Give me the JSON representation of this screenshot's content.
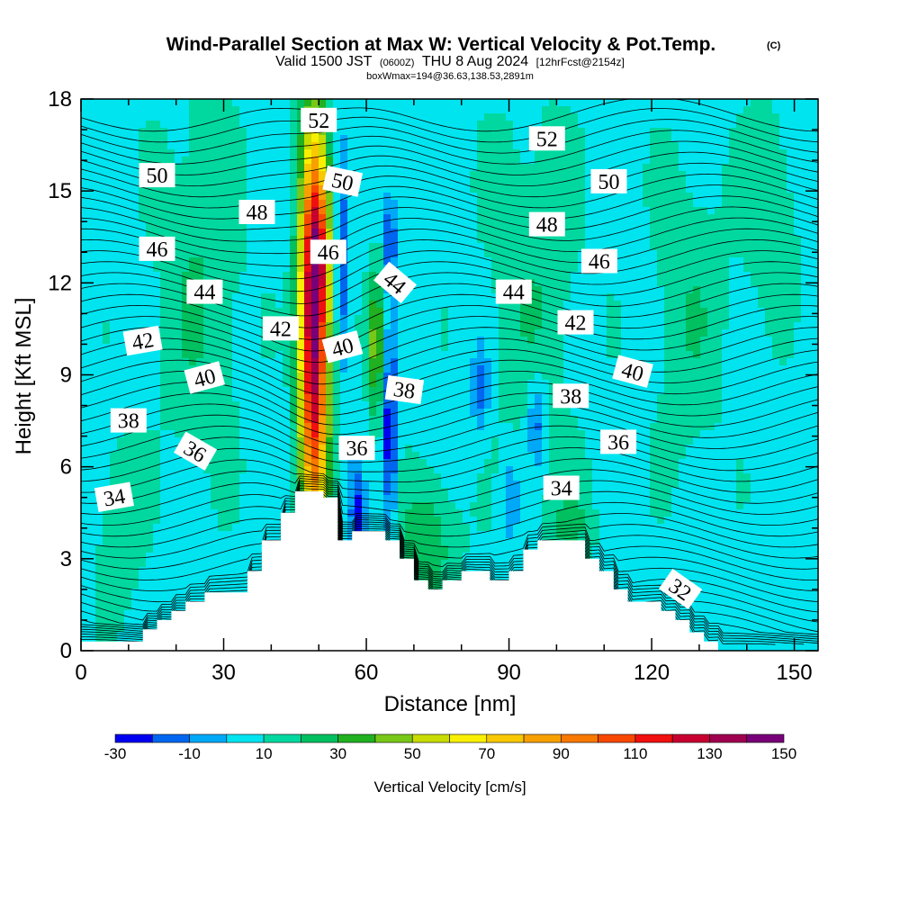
{
  "header": {
    "title": "Wind-Parallel Section at Max W: Vertical Velocity & Pot.Temp.",
    "title_mark": "(C)",
    "valid_main": "Valid 1500 JST",
    "valid_utc": "(0600Z)",
    "valid_date": "THU 8 Aug 2024",
    "forecast": "[12hrFcst@2154z]",
    "box_info": "boxWmax=194@36.63,138.53,2891m"
  },
  "chart_data": {
    "type": "heatmap",
    "title": "Wind-Parallel Section at Max W: Vertical Velocity & Pot.Temp.",
    "xlabel": "Distance [nm]",
    "ylabel": "Height [Kft MSL]",
    "xlim": [
      0,
      155
    ],
    "ylim": [
      0,
      18
    ],
    "x_ticks": [
      0,
      30,
      60,
      90,
      120,
      150
    ],
    "y_ticks": [
      0,
      3,
      6,
      9,
      12,
      15,
      18
    ],
    "colorbar": {
      "title": "Vertical Velocity [cm/s]",
      "levels": [
        -30,
        -20,
        -10,
        0,
        10,
        20,
        30,
        40,
        50,
        60,
        70,
        80,
        90,
        100,
        110,
        120,
        130,
        140,
        150
      ],
      "tick_labels": [
        "-30",
        "-10",
        "10",
        "30",
        "50",
        "70",
        "90",
        "110",
        "130",
        "150"
      ],
      "colors": [
        "#0000f0",
        "#0066f0",
        "#00a8f8",
        "#00e4f0",
        "#00d8a0",
        "#00c060",
        "#20b020",
        "#78c818",
        "#c8dc00",
        "#f8f000",
        "#f8c800",
        "#f8a000",
        "#f87800",
        "#f84800",
        "#f01010",
        "#c80030",
        "#a00050",
        "#780078"
      ]
    },
    "velocity_features": [
      {
        "x": 49,
        "y": 10.5,
        "dx": 3.0,
        "dy": 6.5,
        "w": 140
      },
      {
        "x": 50,
        "y": 13.0,
        "dx": 2.2,
        "dy": 2.0,
        "w": 30
      },
      {
        "x": 62,
        "y": 10.0,
        "dx": 1.6,
        "dy": 2.4,
        "w": 40
      },
      {
        "x": 73,
        "y": 3.5,
        "dx": 6.0,
        "dy": 2.2,
        "w": 22
      },
      {
        "x": 103,
        "y": 4.0,
        "dx": 5.0,
        "dy": 1.8,
        "w": 14
      },
      {
        "x": 25,
        "y": 12.0,
        "dx": 9.0,
        "dy": 6.0,
        "w": 14
      },
      {
        "x": 95,
        "y": 12.0,
        "dx": 10.0,
        "dy": 6.0,
        "w": 12
      },
      {
        "x": 128,
        "y": 11.0,
        "dx": 8.0,
        "dy": 5.0,
        "w": 12
      },
      {
        "x": 145,
        "y": 14.5,
        "dx": 6.0,
        "dy": 3.5,
        "w": 12
      },
      {
        "x": 8,
        "y": 4.0,
        "dx": 5.0,
        "dy": 3.0,
        "w": 12
      },
      {
        "x": 55,
        "y": 12.5,
        "dx": 1.3,
        "dy": 3.5,
        "w": -25
      },
      {
        "x": 65,
        "y": 7.0,
        "dx": 1.3,
        "dy": 3.0,
        "w": -40
      },
      {
        "x": 65,
        "y": 13.5,
        "dx": 1.2,
        "dy": 1.5,
        "w": -30
      },
      {
        "x": 58,
        "y": 4.5,
        "dx": 1.4,
        "dy": 1.5,
        "w": -28
      },
      {
        "x": 84,
        "y": 8.5,
        "dx": 1.8,
        "dy": 1.5,
        "w": -22
      },
      {
        "x": 96,
        "y": 7.5,
        "dx": 2.0,
        "dy": 1.5,
        "w": -22
      },
      {
        "x": 90,
        "y": 5.0,
        "dx": 2.0,
        "dy": 1.5,
        "w": -15
      }
    ],
    "terrain": {
      "x": [
        0,
        13,
        13,
        16,
        16,
        19,
        19,
        22,
        22,
        26,
        26,
        35,
        35,
        38,
        38,
        42,
        42,
        45,
        45,
        48,
        48,
        51,
        51,
        54,
        54,
        57,
        57,
        60,
        60,
        64,
        64,
        67,
        67,
        70,
        70,
        73,
        73,
        76,
        76,
        80,
        80,
        82,
        82,
        86,
        86,
        90,
        90,
        93,
        93,
        96,
        96,
        99,
        99,
        106,
        106,
        109,
        109,
        112,
        112,
        115,
        115,
        122,
        122,
        125,
        125,
        128,
        128,
        131,
        131,
        134,
        134,
        137,
        137,
        155
      ],
      "y": [
        0.3,
        0.3,
        0.7,
        0.7,
        1.0,
        1.0,
        1.3,
        1.3,
        1.6,
        1.6,
        1.9,
        1.9,
        2.6,
        2.6,
        3.6,
        3.6,
        4.5,
        4.5,
        5.2,
        5.2,
        5.2,
        5.2,
        5.0,
        5.0,
        3.6,
        3.6,
        3.9,
        3.9,
        3.9,
        3.9,
        3.6,
        3.6,
        3.0,
        3.0,
        2.3,
        2.3,
        2.0,
        2.0,
        2.3,
        2.3,
        2.6,
        2.6,
        2.6,
        2.6,
        2.3,
        2.3,
        2.6,
        2.6,
        3.3,
        3.3,
        3.6,
        3.6,
        3.6,
        3.6,
        3.0,
        3.0,
        2.6,
        2.6,
        2.0,
        2.0,
        1.6,
        1.6,
        1.3,
        1.3,
        1.0,
        1.0,
        0.6,
        0.6,
        0.3,
        0.3,
        0.0,
        0.0,
        0.0,
        0.0
      ]
    },
    "theta_lines": {
      "start": 26,
      "end": 53,
      "step": 0.5,
      "gradient_k_per_kft": 1.4
    },
    "contour_labels": [
      {
        "text": "52",
        "x": 50,
        "y": 17.3,
        "angle": 0
      },
      {
        "text": "52",
        "x": 98,
        "y": 16.7,
        "angle": 0
      },
      {
        "text": "50",
        "x": 16,
        "y": 15.5,
        "angle": 0
      },
      {
        "text": "50",
        "x": 55,
        "y": 15.3,
        "angle": 12
      },
      {
        "text": "50",
        "x": 111,
        "y": 15.3,
        "angle": 0
      },
      {
        "text": "48",
        "x": 37,
        "y": 14.3,
        "angle": 0
      },
      {
        "text": "48",
        "x": 98,
        "y": 13.9,
        "angle": 0
      },
      {
        "text": "46",
        "x": 16,
        "y": 13.1,
        "angle": 0
      },
      {
        "text": "46",
        "x": 52,
        "y": 13.0,
        "angle": 0
      },
      {
        "text": "46",
        "x": 109,
        "y": 12.7,
        "angle": 0
      },
      {
        "text": "44",
        "x": 26,
        "y": 11.7,
        "angle": 0
      },
      {
        "text": "44",
        "x": 66,
        "y": 12.0,
        "angle": 40
      },
      {
        "text": "44",
        "x": 91,
        "y": 11.7,
        "angle": 0
      },
      {
        "text": "42",
        "x": 13,
        "y": 10.1,
        "angle": -10
      },
      {
        "text": "42",
        "x": 42,
        "y": 10.5,
        "angle": 0
      },
      {
        "text": "42",
        "x": 104,
        "y": 10.7,
        "angle": 0
      },
      {
        "text": "40",
        "x": 26,
        "y": 8.9,
        "angle": -15
      },
      {
        "text": "40",
        "x": 55,
        "y": 9.9,
        "angle": -15
      },
      {
        "text": "40",
        "x": 116,
        "y": 9.1,
        "angle": 15
      },
      {
        "text": "38",
        "x": 10,
        "y": 7.5,
        "angle": 0
      },
      {
        "text": "38",
        "x": 68,
        "y": 8.5,
        "angle": 8
      },
      {
        "text": "38",
        "x": 103,
        "y": 8.3,
        "angle": 0
      },
      {
        "text": "36",
        "x": 24,
        "y": 6.5,
        "angle": 30
      },
      {
        "text": "36",
        "x": 58,
        "y": 6.6,
        "angle": 0
      },
      {
        "text": "36",
        "x": 113,
        "y": 6.8,
        "angle": 0
      },
      {
        "text": "34",
        "x": 7,
        "y": 5.0,
        "angle": -10
      },
      {
        "text": "34",
        "x": 101,
        "y": 5.3,
        "angle": 0
      },
      {
        "text": "32",
        "x": 126,
        "y": 2.0,
        "angle": 35
      }
    ]
  }
}
